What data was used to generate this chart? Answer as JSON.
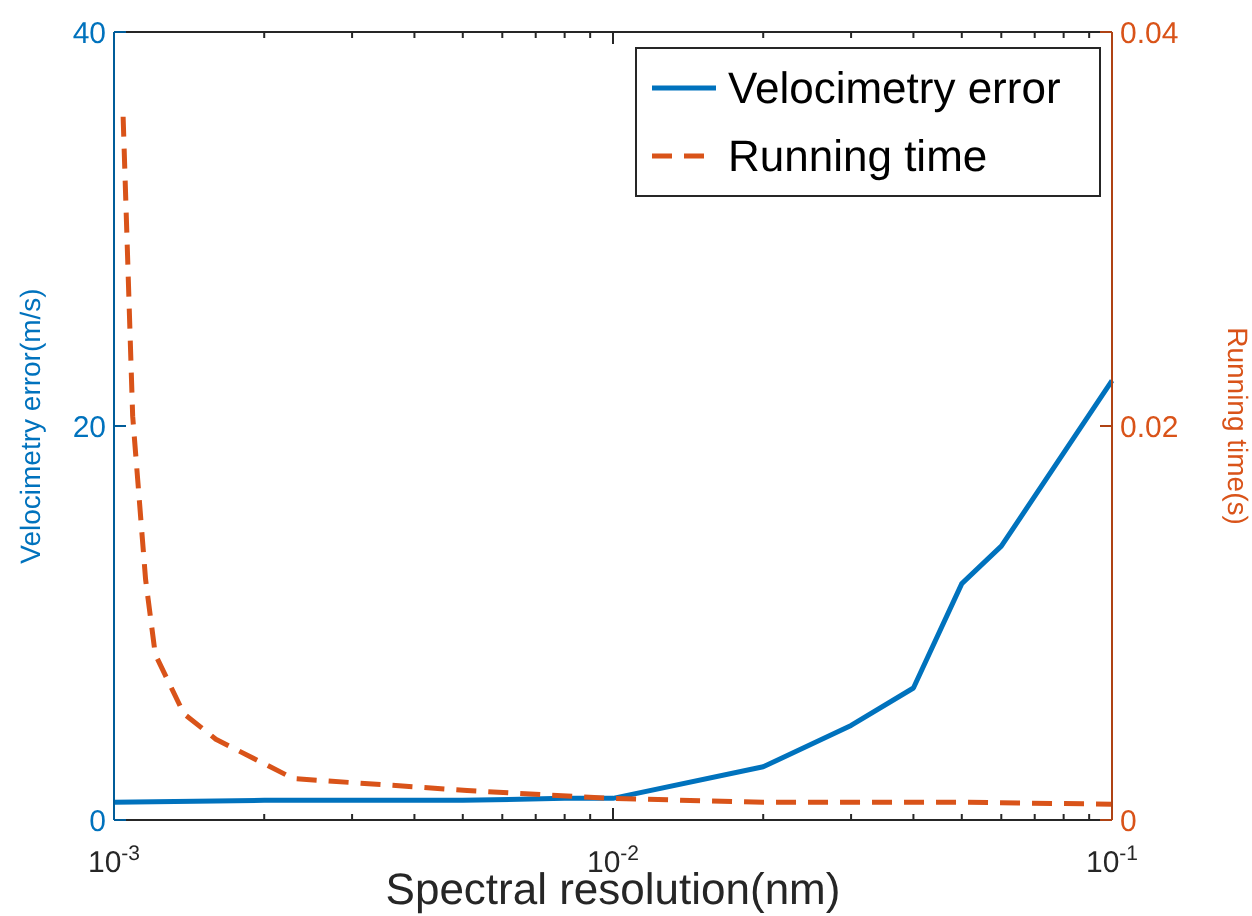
{
  "chart_data": {
    "type": "line",
    "xlabel": "Spectral resolution(nm)",
    "ylabel": "Velocimetry error(m/s)",
    "y2label": "Running time(s)",
    "log": "x",
    "xlim": [
      0.001,
      0.1
    ],
    "xticks": [
      {
        "value": 0.001,
        "label": "10$^{-3}$"
      },
      {
        "value": 0.002,
        "label": null
      },
      {
        "value": 0.003,
        "label": null
      },
      {
        "value": 0.004,
        "label": null
      },
      {
        "value": 0.005,
        "label": null
      },
      {
        "value": 0.006,
        "label": null
      },
      {
        "value": 0.007,
        "label": null
      },
      {
        "value": 0.008,
        "label": null
      },
      {
        "value": 0.009,
        "label": null
      },
      {
        "value": 0.01,
        "label": "10$^{-2}$"
      },
      {
        "value": 0.02,
        "label": null
      },
      {
        "value": 0.03,
        "label": null
      },
      {
        "value": 0.04,
        "label": null
      },
      {
        "value": 0.05,
        "label": null
      },
      {
        "value": 0.06,
        "label": null
      },
      {
        "value": 0.07,
        "label": null
      },
      {
        "value": 0.08,
        "label": null
      },
      {
        "value": 0.09,
        "label": null
      },
      {
        "value": 0.1,
        "label": "10$^{-1}$"
      }
    ],
    "ylim": [
      0,
      40
    ],
    "yticks": [
      0,
      20,
      40
    ],
    "y2lim": [
      0,
      0.04
    ],
    "y2ticks": [
      0,
      0.02,
      0.04
    ],
    "legend": "top right",
    "grid": false,
    "series": [
      {
        "name": "Velocimetry error",
        "color": "#0072bd",
        "line_style": "solid",
        "x": [
          0.001,
          0.002,
          0.005,
          0.008,
          0.01,
          0.02,
          0.03,
          0.04,
          0.05,
          0.06,
          0.1
        ],
        "values": [
          0.9,
          1.0,
          1.0,
          1.1,
          1.1,
          2.7,
          4.8,
          6.7,
          12,
          13.9,
          22.3
        ]
      },
      {
        "name": "Running time",
        "color": "#d95319",
        "line_style": "dashed",
        "axis": "y2",
        "x": [
          0.001043,
          0.00109,
          0.001157,
          0.00121,
          0.00138,
          0.0016,
          0.00229,
          0.0051,
          0.0098,
          0.02,
          0.05,
          0.1
        ],
        "values": [
          0.0357,
          0.0205,
          0.0122,
          0.0084,
          0.0054,
          0.0041,
          0.0021,
          0.0015,
          0.0011,
          0.0009,
          0.0009,
          0.0008
        ]
      }
    ]
  }
}
